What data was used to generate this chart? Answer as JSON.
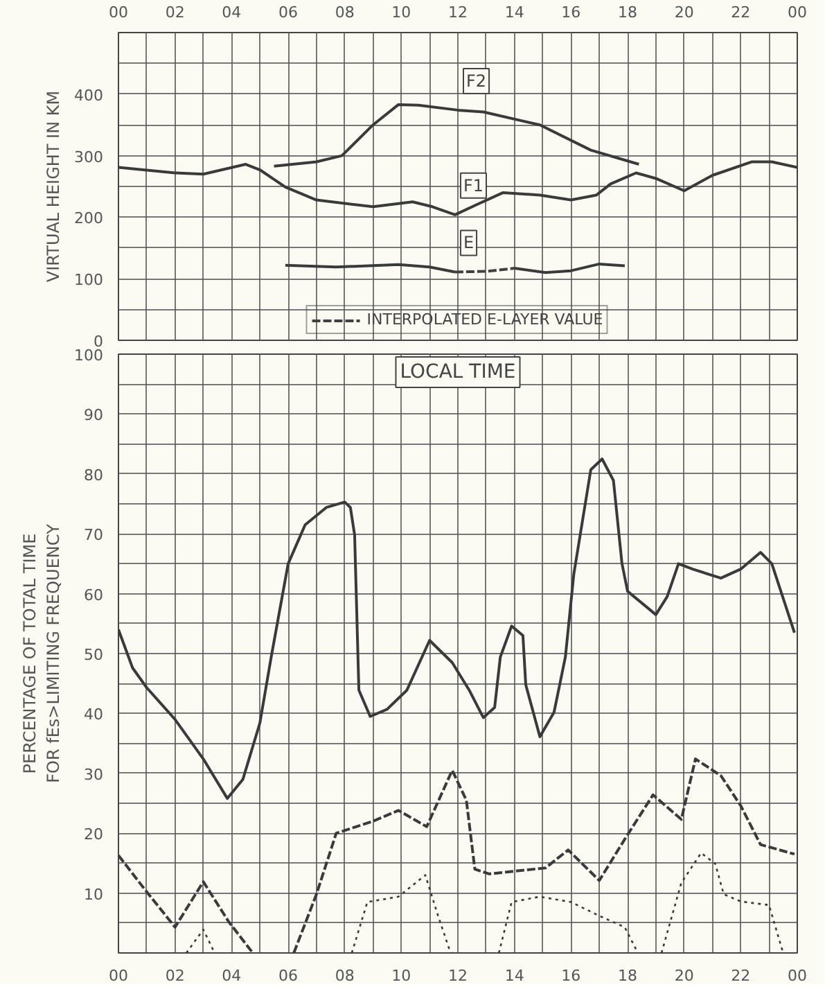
{
  "chart_data": [
    {
      "type": "line",
      "ylabel": "VIRTUAL HEIGHT IN KM",
      "xlim": [
        0,
        24
      ],
      "xticks": [
        {
          "value": 0,
          "label": "00"
        },
        {
          "value": 1,
          "label": null
        },
        {
          "value": 2,
          "label": "02"
        },
        {
          "value": 3,
          "label": null
        },
        {
          "value": 4,
          "label": "04"
        },
        {
          "value": 5,
          "label": null
        },
        {
          "value": 6,
          "label": "06"
        },
        {
          "value": 7,
          "label": null
        },
        {
          "value": 8,
          "label": "08"
        },
        {
          "value": 9,
          "label": null
        },
        {
          "value": 10,
          "label": "10"
        },
        {
          "value": 11,
          "label": null
        },
        {
          "value": 12,
          "label": "12"
        },
        {
          "value": 13,
          "label": null
        },
        {
          "value": 14,
          "label": "14"
        },
        {
          "value": 15,
          "label": null
        },
        {
          "value": 16,
          "label": "16"
        },
        {
          "value": 17,
          "label": null
        },
        {
          "value": 18,
          "label": "18"
        },
        {
          "value": 19,
          "label": null
        },
        {
          "value": 20,
          "label": "20"
        },
        {
          "value": 21,
          "label": null
        },
        {
          "value": 22,
          "label": "22"
        },
        {
          "value": 23,
          "label": null
        },
        {
          "value": 24,
          "label": "00"
        }
      ],
      "ylim": [
        0,
        500
      ],
      "yticks": [
        0,
        {
          "value": 50,
          "label": null
        },
        100,
        {
          "value": 150,
          "label": null
        },
        200,
        {
          "value": 250,
          "label": null
        },
        300,
        {
          "value": 350,
          "label": null
        },
        400,
        {
          "value": 450,
          "label": null
        },
        {
          "value": 500,
          "label": null
        }
      ],
      "grid": true,
      "legend": "bottom",
      "series": [
        {
          "name": "F2",
          "color": "#3a3a3a",
          "line_style": "solid",
          "x": [
            5.5,
            7,
            7.9,
            9,
            9.9,
            10.6,
            12,
            12.9,
            14.9,
            16.7,
            18.4
          ],
          "values": [
            283,
            290,
            300,
            350,
            383,
            382,
            374,
            371,
            350,
            309,
            286
          ]
        },
        {
          "name": "F1",
          "color": "#3a3a3a",
          "line_style": "solid",
          "x": [
            0,
            2,
            3,
            4.5,
            5,
            5.9,
            7,
            9,
            10.4,
            11.1,
            11.9,
            12.6,
            13.6,
            14.9,
            16,
            16.9,
            17.4,
            18.3,
            19,
            20,
            21,
            22.4,
            23.1,
            24
          ],
          "values": [
            281,
            272,
            270,
            286,
            277,
            249,
            228,
            217,
            225,
            217,
            204,
            219,
            240,
            236,
            228,
            236,
            254,
            272,
            263,
            243,
            268,
            290,
            290,
            281
          ]
        },
        {
          "name": "E",
          "color": "#3a3a3a",
          "line_style": "solid",
          "x": [
            5.9,
            7.7,
            9.9,
            11,
            11.9,
            13,
            14,
            15.1,
            16,
            17,
            17.9
          ],
          "values": [
            122,
            119,
            123,
            119,
            111,
            null,
            117,
            110,
            113,
            124,
            121
          ]
        },
        {
          "name": "INTERPOLATED E-LAYER VALUE",
          "color": "#404040",
          "line_style": "dashed",
          "x": [
            11.9,
            13,
            14
          ],
          "values": [
            111,
            112,
            117
          ]
        }
      ]
    },
    {
      "type": "line",
      "ylabel": "PERCENTAGE OF TOTAL TIME\nFOR fEs>LIMITING FREQUENCY",
      "xlim": [
        0,
        24
      ],
      "xticks": [
        {
          "value": 0,
          "label": "00"
        },
        {
          "value": 1,
          "label": null
        },
        {
          "value": 2,
          "label": "02"
        },
        {
          "value": 3,
          "label": null
        },
        {
          "value": 4,
          "label": "04"
        },
        {
          "value": 5,
          "label": null
        },
        {
          "value": 6,
          "label": "06"
        },
        {
          "value": 7,
          "label": null
        },
        {
          "value": 8,
          "label": "08"
        },
        {
          "value": 9,
          "label": null
        },
        {
          "value": 10,
          "label": "10"
        },
        {
          "value": 11,
          "label": null
        },
        {
          "value": 12,
          "label": "12"
        },
        {
          "value": 13,
          "label": null
        },
        {
          "value": 14,
          "label": "14"
        },
        {
          "value": 15,
          "label": null
        },
        {
          "value": 16,
          "label": "16"
        },
        {
          "value": 17,
          "label": null
        },
        {
          "value": 18,
          "label": "18"
        },
        {
          "value": 19,
          "label": null
        },
        {
          "value": 20,
          "label": "20"
        },
        {
          "value": 21,
          "label": null
        },
        {
          "value": 22,
          "label": "22"
        },
        {
          "value": 23,
          "label": null
        },
        {
          "value": 24,
          "label": "00"
        }
      ],
      "ylim": [
        0,
        100
      ],
      "yticks": [
        {
          "value": 0,
          "label": null
        },
        {
          "value": 5,
          "label": null
        },
        10,
        {
          "value": 15,
          "label": null
        },
        20,
        {
          "value": 25,
          "label": null
        },
        30,
        {
          "value": 35,
          "label": null
        },
        40,
        {
          "value": 45,
          "label": null
        },
        50,
        {
          "value": 55,
          "label": null
        },
        60,
        {
          "value": 65,
          "label": null
        },
        70,
        {
          "value": 75,
          "label": null
        },
        80,
        {
          "value": 85,
          "label": null
        },
        90,
        {
          "value": 95,
          "label": null
        },
        100
      ],
      "grid": true,
      "annotations": [
        "LOCAL TIME"
      ],
      "series": [
        {
          "color": "#3a3a3a",
          "line_style": "solid",
          "x": [
            0,
            0.5,
            1,
            2,
            3,
            3.85,
            4.4,
            5,
            5.4,
            6,
            6.6,
            7.35,
            8,
            8.2,
            8.35,
            8.5,
            8.9,
            9.5,
            10.2,
            11,
            11.8,
            12.4,
            12.9,
            13.3,
            13.5,
            13.9,
            14.3,
            14.4,
            14.9,
            15.4,
            15.8,
            16.1,
            16.7,
            17.1,
            17.5,
            17.8,
            18,
            19,
            19.4,
            19.8,
            20.3,
            21.3,
            22,
            22.7,
            23.1,
            23.9
          ],
          "values": [
            54,
            47.6,
            44.3,
            39,
            32.4,
            25.8,
            29,
            38.4,
            49.4,
            65,
            71.5,
            74.4,
            75.3,
            74.4,
            69.8,
            43.9,
            39.5,
            40.7,
            43.9,
            52.2,
            48.5,
            43.9,
            39.3,
            41,
            49.4,
            54.6,
            53,
            44.8,
            36.1,
            40.2,
            49.4,
            63.3,
            80.7,
            82.5,
            78.9,
            65.1,
            60.4,
            56.5,
            59.5,
            65,
            64.1,
            62.6,
            64.1,
            66.9,
            65,
            53.5
          ]
        },
        {
          "color": "#3a3a3a",
          "line_style": "dashed",
          "x": [
            0,
            0.9,
            2,
            3,
            3.9,
            4.75,
            5.5,
            6.2,
            7,
            7.7,
            9,
            9.9,
            10.9,
            11.8,
            12.3,
            12.6,
            13.1,
            15.1,
            15.9,
            17,
            17.9,
            18.9,
            19.9,
            20.4,
            21.3,
            22,
            22.7,
            23.9
          ],
          "values": [
            16.3,
            10.8,
            4.3,
            11.9,
            5.2,
            0,
            null,
            0,
            9.8,
            20,
            22,
            23.8,
            21.1,
            30.5,
            25.5,
            14,
            13.2,
            14.2,
            17.2,
            12.1,
            19,
            26.4,
            22.3,
            32.4,
            29.6,
            24.6,
            18.1,
            16.5
          ]
        },
        {
          "color": "#3a3a3a",
          "line_style": "dotted",
          "x": [
            2.4,
            3,
            3.4,
            5,
            8.25,
            8.8,
            9.9,
            10.85,
            11.3,
            11.7,
            11.8,
            12.5,
            13.45,
            13.9,
            14.9,
            16,
            17,
            17.9,
            18.3,
            18.8,
            19.2,
            19.9,
            20.6,
            21.1,
            21.4,
            22,
            23,
            23.4,
            23.5
          ],
          "values": [
            0,
            3.9,
            0,
            null,
            0,
            8.5,
            9.4,
            13,
            6.2,
            0.6,
            0,
            null,
            0,
            8.5,
            9.4,
            8.5,
            6.2,
            4.3,
            0.6,
            null,
            0,
            11.7,
            16.7,
            14.9,
            9.8,
            8.6,
            8,
            1.6,
            0
          ]
        }
      ]
    }
  ]
}
